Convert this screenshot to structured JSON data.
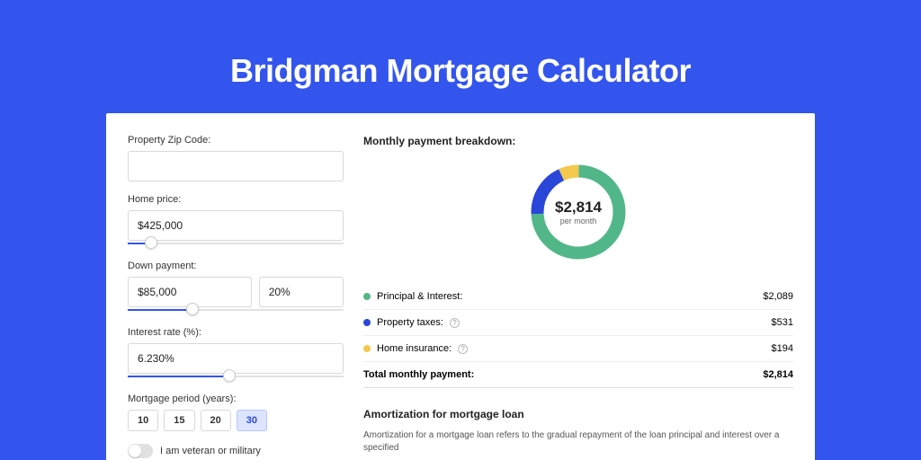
{
  "page": {
    "title": "Bridgman Mortgage Calculator",
    "bg_color": "#3355ee",
    "panel_bg": "#ffffff"
  },
  "inputs": {
    "zip_label": "Property Zip Code:",
    "zip_value": "",
    "home_price_label": "Home price:",
    "home_price_value": "$425,000",
    "home_price_slider_pct": 11,
    "down_label": "Down payment:",
    "down_value": "$85,000",
    "down_pct_value": "20%",
    "down_slider_pct": 30,
    "rate_label": "Interest rate (%):",
    "rate_value": "6.230%",
    "rate_slider_pct": 47,
    "period_label": "Mortgage period (years):",
    "periods": [
      "10",
      "15",
      "20",
      "30"
    ],
    "period_active": "30",
    "veteran_label": "I am veteran or military"
  },
  "breakdown": {
    "title": "Monthly payment breakdown:",
    "donut": {
      "amount": "$2,814",
      "period": "per month",
      "slices": [
        {
          "label": "Principal & Interest:",
          "value": "$2,089",
          "color": "#52b788",
          "pct": 74.2
        },
        {
          "label": "Property taxes:",
          "value": "$531",
          "color": "#2a46d8",
          "pct": 18.9
        },
        {
          "label": "Home insurance:",
          "value": "$194",
          "color": "#f2c94c",
          "pct": 6.9
        }
      ],
      "ring_width": 14
    },
    "rows": [
      {
        "label": "Principal & Interest:",
        "value": "$2,089",
        "color": "#52b788",
        "help": false
      },
      {
        "label": "Property taxes:",
        "value": "$531",
        "color": "#2a46d8",
        "help": true
      },
      {
        "label": "Home insurance:",
        "value": "$194",
        "color": "#f2c94c",
        "help": true
      }
    ],
    "total_label": "Total monthly payment:",
    "total_value": "$2,814"
  },
  "amort": {
    "title": "Amortization for mortgage loan",
    "text": "Amortization for a mortgage loan refers to the gradual repayment of the loan principal and interest over a specified"
  }
}
